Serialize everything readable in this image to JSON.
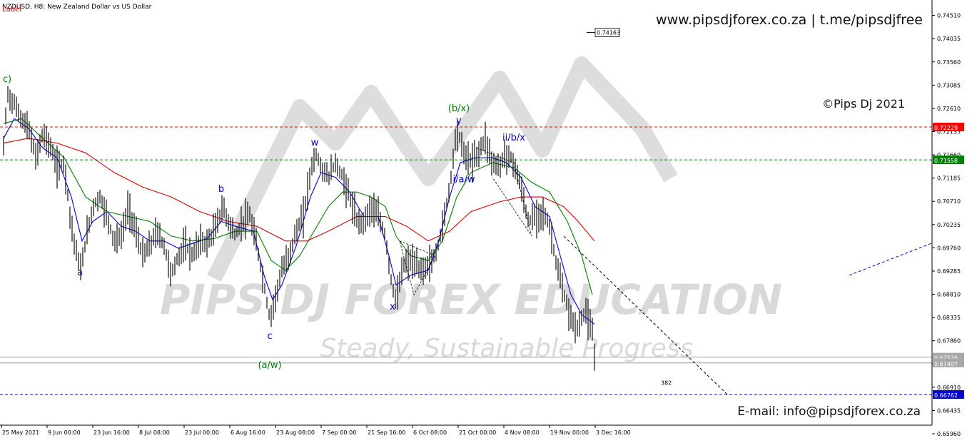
{
  "header": {
    "symbol_line": "NZDUSD, H8:  New Zealand Dollar vs US Dollar",
    "label_text": "Label"
  },
  "branding": {
    "website_line": "www.pipsdjforex.co.za  |  t.me/pipsdjfree",
    "copyright": "©Pips Dj 2021",
    "email": "E-mail: info@pipsdjforex.co.za",
    "watermark_title": "PIPS DJ FOREX EDUCATION",
    "watermark_slogan": "Steady, Sustainable Progress"
  },
  "colors": {
    "red_level": "#ff0000",
    "green_level": "#008000",
    "blue_level": "#0000cc",
    "ma_fast": "#0000ff",
    "ma_mid": "#008000",
    "ma_slow": "#dd0000",
    "wave_blue": "#0000cc",
    "wave_green": "#008000"
  },
  "chart_data": {
    "type": "candlestick",
    "ylim": [
      0.6615,
      0.7465
    ],
    "xlim": [
      0,
      1305
    ],
    "y_ticks": [
      "0.74510",
      "0.74035",
      "0.73560",
      "0.73085",
      "0.72610",
      "0.72135",
      "0.71660",
      "0.71185",
      "0.70710",
      "0.70235",
      "0.69760",
      "0.69285",
      "0.68810",
      "0.68335",
      "0.67860",
      "0.67385",
      "0.66910",
      "0.66435",
      "0.65960"
    ],
    "x_ticks": [
      {
        "label": "25 May 2021",
        "x": 2
      },
      {
        "label": "9 Jun 00:00",
        "x": 66
      },
      {
        "label": "23 Jun 16:00",
        "x": 130
      },
      {
        "label": "8 Jul 08:00",
        "x": 194
      },
      {
        "label": "23 Jul 00:00",
        "x": 258
      },
      {
        "label": "6 Aug 16:00",
        "x": 322
      },
      {
        "label": "23 Aug 08:00",
        "x": 386
      },
      {
        "label": "7 Sep 00:00",
        "x": 450
      },
      {
        "label": "21 Sep 16:00",
        "x": 514
      },
      {
        "label": "6 Oct 08:00",
        "x": 578
      },
      {
        "label": "21 Oct 00:00",
        "x": 642
      },
      {
        "label": "4 Nov 08:00",
        "x": 706
      },
      {
        "label": "19 Nov 00:00",
        "x": 770
      },
      {
        "label": "3 Dec 16:00",
        "x": 834
      }
    ],
    "price_path": [
      [
        5,
        0.718
      ],
      [
        10,
        0.729
      ],
      [
        20,
        0.727
      ],
      [
        30,
        0.724
      ],
      [
        40,
        0.722
      ],
      [
        50,
        0.716
      ],
      [
        60,
        0.721
      ],
      [
        70,
        0.7185
      ],
      [
        80,
        0.714
      ],
      [
        90,
        0.715
      ],
      [
        100,
        0.702
      ],
      [
        108,
        0.696
      ],
      [
        113,
        0.693
      ],
      [
        120,
        0.699
      ],
      [
        130,
        0.706
      ],
      [
        140,
        0.708
      ],
      [
        150,
        0.704
      ],
      [
        160,
        0.699
      ],
      [
        170,
        0.7
      ],
      [
        180,
        0.706
      ],
      [
        190,
        0.701
      ],
      [
        200,
        0.696
      ],
      [
        210,
        0.698
      ],
      [
        220,
        0.701
      ],
      [
        230,
        0.698
      ],
      [
        240,
        0.692
      ],
      [
        250,
        0.696
      ],
      [
        260,
        0.698
      ],
      [
        270,
        0.696
      ],
      [
        280,
        0.699
      ],
      [
        290,
        0.6985
      ],
      [
        300,
        0.701
      ],
      [
        312,
        0.706
      ],
      [
        320,
        0.703
      ],
      [
        330,
        0.7
      ],
      [
        340,
        0.703
      ],
      [
        350,
        0.704
      ],
      [
        360,
        0.698
      ],
      [
        370,
        0.69
      ],
      [
        378,
        0.683
      ],
      [
        385,
        0.687
      ],
      [
        395,
        0.693
      ],
      [
        405,
        0.696
      ],
      [
        415,
        0.701
      ],
      [
        425,
        0.704
      ],
      [
        435,
        0.713
      ],
      [
        442,
        0.717
      ],
      [
        450,
        0.714
      ],
      [
        460,
        0.712
      ],
      [
        470,
        0.715
      ],
      [
        480,
        0.712
      ],
      [
        490,
        0.708
      ],
      [
        500,
        0.703
      ],
      [
        510,
        0.703
      ],
      [
        520,
        0.706
      ],
      [
        530,
        0.704
      ],
      [
        540,
        0.7
      ],
      [
        550,
        0.689
      ],
      [
        556,
        0.687
      ],
      [
        565,
        0.694
      ],
      [
        575,
        0.695
      ],
      [
        590,
        0.693
      ],
      [
        600,
        0.694
      ],
      [
        610,
        0.696
      ],
      [
        620,
        0.702
      ],
      [
        630,
        0.71
      ],
      [
        640,
        0.722
      ],
      [
        650,
        0.717
      ],
      [
        660,
        0.715
      ],
      [
        670,
        0.717
      ],
      [
        680,
        0.72
      ],
      [
        690,
        0.715
      ],
      [
        700,
        0.714
      ],
      [
        708,
        0.717
      ],
      [
        720,
        0.715
      ],
      [
        730,
        0.71
      ],
      [
        740,
        0.703
      ],
      [
        750,
        0.704
      ],
      [
        760,
        0.705
      ],
      [
        770,
        0.702
      ],
      [
        780,
        0.694
      ],
      [
        790,
        0.688
      ],
      [
        800,
        0.683
      ],
      [
        810,
        0.681
      ],
      [
        820,
        0.685
      ],
      [
        830,
        0.68
      ],
      [
        833,
        0.675
      ]
    ],
    "moving_averages": [
      {
        "color_key": "ma_fast",
        "points": [
          [
            5,
            0.72
          ],
          [
            20,
            0.724
          ],
          [
            40,
            0.722
          ],
          [
            60,
            0.718
          ],
          [
            80,
            0.716
          ],
          [
            100,
            0.708
          ],
          [
            115,
            0.699
          ],
          [
            130,
            0.703
          ],
          [
            150,
            0.705
          ],
          [
            170,
            0.702
          ],
          [
            190,
            0.701
          ],
          [
            210,
            0.699
          ],
          [
            230,
            0.699
          ],
          [
            250,
            0.6975
          ],
          [
            270,
            0.6985
          ],
          [
            290,
            0.6995
          ],
          [
            310,
            0.703
          ],
          [
            330,
            0.702
          ],
          [
            355,
            0.701
          ],
          [
            370,
            0.692
          ],
          [
            382,
            0.687
          ],
          [
            395,
            0.69
          ],
          [
            415,
            0.698
          ],
          [
            435,
            0.708
          ],
          [
            450,
            0.713
          ],
          [
            470,
            0.712
          ],
          [
            490,
            0.709
          ],
          [
            510,
            0.704
          ],
          [
            530,
            0.704
          ],
          [
            545,
            0.696
          ],
          [
            555,
            0.69
          ],
          [
            575,
            0.692
          ],
          [
            600,
            0.693
          ],
          [
            615,
            0.699
          ],
          [
            630,
            0.708
          ],
          [
            645,
            0.715
          ],
          [
            665,
            0.716
          ],
          [
            690,
            0.716
          ],
          [
            710,
            0.715
          ],
          [
            730,
            0.712
          ],
          [
            750,
            0.706
          ],
          [
            770,
            0.704
          ],
          [
            785,
            0.696
          ],
          [
            800,
            0.688
          ],
          [
            815,
            0.684
          ],
          [
            833,
            0.682
          ]
        ]
      },
      {
        "color_key": "ma_mid",
        "points": [
          [
            5,
            0.723
          ],
          [
            30,
            0.724
          ],
          [
            60,
            0.72
          ],
          [
            90,
            0.716
          ],
          [
            120,
            0.708
          ],
          [
            150,
            0.705
          ],
          [
            180,
            0.704
          ],
          [
            210,
            0.703
          ],
          [
            240,
            0.7
          ],
          [
            270,
            0.699
          ],
          [
            300,
            0.6995
          ],
          [
            330,
            0.701
          ],
          [
            360,
            0.701
          ],
          [
            380,
            0.695
          ],
          [
            400,
            0.693
          ],
          [
            420,
            0.696
          ],
          [
            440,
            0.701
          ],
          [
            460,
            0.706
          ],
          [
            480,
            0.709
          ],
          [
            500,
            0.709
          ],
          [
            520,
            0.708
          ],
          [
            540,
            0.706
          ],
          [
            555,
            0.7
          ],
          [
            575,
            0.696
          ],
          [
            600,
            0.695
          ],
          [
            620,
            0.699
          ],
          [
            640,
            0.708
          ],
          [
            660,
            0.713
          ],
          [
            690,
            0.715
          ],
          [
            720,
            0.714
          ],
          [
            745,
            0.711
          ],
          [
            770,
            0.709
          ],
          [
            795,
            0.703
          ],
          [
            815,
            0.696
          ],
          [
            830,
            0.688
          ]
        ]
      },
      {
        "color_key": "ma_slow",
        "points": [
          [
            5,
            0.719
          ],
          [
            40,
            0.72
          ],
          [
            80,
            0.719
          ],
          [
            120,
            0.717
          ],
          [
            160,
            0.713
          ],
          [
            200,
            0.71
          ],
          [
            240,
            0.708
          ],
          [
            280,
            0.705
          ],
          [
            320,
            0.703
          ],
          [
            360,
            0.702
          ],
          [
            400,
            0.699
          ],
          [
            430,
            0.699
          ],
          [
            460,
            0.701
          ],
          [
            500,
            0.704
          ],
          [
            540,
            0.704
          ],
          [
            570,
            0.702
          ],
          [
            600,
            0.699
          ],
          [
            630,
            0.701
          ],
          [
            660,
            0.705
          ],
          [
            700,
            0.707
          ],
          [
            730,
            0.708
          ],
          [
            760,
            0.708
          ],
          [
            790,
            0.706
          ],
          [
            810,
            0.703
          ],
          [
            833,
            0.699
          ]
        ]
      }
    ],
    "horizontal_levels": [
      {
        "price": 0.72229,
        "label": "0.72229",
        "color_key": "red_level",
        "style": "dashed"
      },
      {
        "price": 0.71558,
        "label": "0.71558",
        "color_key": "green_level",
        "style": "dashed"
      },
      {
        "price": 0.66762,
        "label": "0.66762",
        "color_key": "blue_level",
        "style": "dashed"
      },
      {
        "price": 0.67526,
        "label": "0.67526",
        "color_key": "gray",
        "style": "solid"
      },
      {
        "price": 0.67407,
        "label": "0.67407",
        "color_key": "gray",
        "style": "solid"
      }
    ],
    "price_tag": {
      "text": "0.74163",
      "price": 0.74163
    },
    "fib_label": {
      "text": "382",
      "price": 0.6696
    },
    "trendlines": [
      {
        "from": [
          790,
          0.7
        ],
        "to": [
          1020,
          0.6675
        ],
        "style": "dashed",
        "color": "#000000"
      },
      {
        "from": [
          1190,
          0.692
        ],
        "to": [
          1305,
          0.6985
        ],
        "style": "dashed",
        "color": "#0000cc"
      }
    ],
    "channels": [
      {
        "poly": [
          [
            560,
            0.699
          ],
          [
            610,
            0.696
          ],
          [
            580,
            0.688
          ],
          [
            560,
            0.699
          ]
        ],
        "color": "#000000"
      },
      {
        "poly": [
          [
            668,
            0.718
          ],
          [
            720,
            0.715
          ],
          [
            745,
            0.7
          ],
          [
            690,
            0.712
          ]
        ],
        "color": "#000000"
      }
    ],
    "wave_labels": [
      {
        "text": "c)",
        "x": 10,
        "price": 0.7315,
        "color_key": "wave_green"
      },
      {
        "text": "a",
        "x": 112,
        "price": 0.692,
        "color_key": "wave_blue"
      },
      {
        "text": "b",
        "x": 310,
        "price": 0.709,
        "color_key": "wave_blue"
      },
      {
        "text": "c",
        "x": 378,
        "price": 0.679,
        "color_key": "wave_blue"
      },
      {
        "text": "(a/w)",
        "x": 378,
        "price": 0.673,
        "color_key": "wave_green"
      },
      {
        "text": "w",
        "x": 441,
        "price": 0.7185,
        "color_key": "wave_blue"
      },
      {
        "text": "x",
        "x": 550,
        "price": 0.685,
        "color_key": "wave_blue"
      },
      {
        "text": "(b/x)",
        "x": 643,
        "price": 0.7255,
        "color_key": "wave_green"
      },
      {
        "text": "y",
        "x": 643,
        "price": 0.723,
        "color_key": "wave_blue"
      },
      {
        "text": "i/a/w",
        "x": 650,
        "price": 0.711,
        "color_key": "wave_blue"
      },
      {
        "text": "ii/b/x",
        "x": 720,
        "price": 0.7195,
        "color_key": "wave_blue"
      }
    ]
  }
}
